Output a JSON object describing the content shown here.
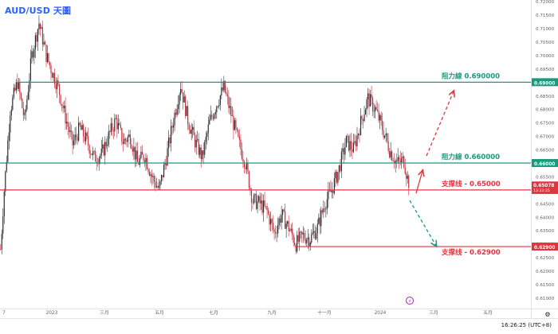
{
  "title": "AUD/USD 天圖",
  "clock": "16:26:25 (UTC+8)",
  "colors": {
    "title": "#2962ff",
    "resistance": "#1a9a7c",
    "support": "#e0353f",
    "up_candle": "#2c2f36",
    "down_candle": "#c2303a",
    "up_arrow": "#e0353f",
    "down_arrow": "#1a9a7c",
    "event": "#9c27b0"
  },
  "chart_data": {
    "type": "candlestick",
    "y_range": [
      0.606,
      0.7205
    ],
    "y_ticks": [
      "0.72000",
      "0.71500",
      "0.71000",
      "0.70500",
      "0.70000",
      "0.69500",
      "0.68500",
      "0.68000",
      "0.67500",
      "0.67000",
      "0.66500",
      "0.65500",
      "0.64500",
      "0.64000",
      "0.63500",
      "0.63000",
      "0.62500",
      "0.62000",
      "0.61500",
      "0.61000"
    ],
    "x_ticks": [
      "7",
      "2023",
      "三月",
      "五月",
      "七月",
      "九月",
      "十一月",
      "2024",
      "三月",
      "五月"
    ],
    "levels": [
      {
        "price": 0.69,
        "tag": "0.69000",
        "label": "阻力線 0.690000",
        "role": "resistance"
      },
      {
        "price": 0.66,
        "tag": "0.66000",
        "label": "阻力線 0.660000",
        "role": "resistance"
      },
      {
        "price": 0.65,
        "tag": "0.65000",
        "label": "支撑线 - 0.65000",
        "role": "support"
      },
      {
        "price": 0.629,
        "tag": "0.62900",
        "label": "支撑线 - 0.62900",
        "role": "support"
      }
    ],
    "last_price": {
      "value": 0.65078,
      "tag": "0.65078",
      "countdown": "13:33:35"
    },
    "anchors": [
      [
        0,
        0.628
      ],
      [
        3,
        0.65
      ],
      [
        8,
        0.68
      ],
      [
        14,
        0.69
      ],
      [
        20,
        0.676
      ],
      [
        26,
        0.7
      ],
      [
        32,
        0.712
      ],
      [
        38,
        0.7
      ],
      [
        42,
        0.695
      ],
      [
        48,
        0.688
      ],
      [
        54,
        0.677
      ],
      [
        60,
        0.667
      ],
      [
        66,
        0.673
      ],
      [
        72,
        0.668
      ],
      [
        78,
        0.662
      ],
      [
        84,
        0.663
      ],
      [
        90,
        0.67
      ],
      [
        96,
        0.676
      ],
      [
        102,
        0.668
      ],
      [
        108,
        0.67
      ],
      [
        114,
        0.66
      ],
      [
        120,
        0.663
      ],
      [
        126,
        0.655
      ],
      [
        132,
        0.65
      ],
      [
        138,
        0.662
      ],
      [
        144,
        0.676
      ],
      [
        150,
        0.689
      ],
      [
        156,
        0.676
      ],
      [
        162,
        0.668
      ],
      [
        168,
        0.662
      ],
      [
        174,
        0.675
      ],
      [
        180,
        0.682
      ],
      [
        186,
        0.688
      ],
      [
        192,
        0.678
      ],
      [
        198,
        0.668
      ],
      [
        204,
        0.66
      ],
      [
        210,
        0.646
      ],
      [
        216,
        0.645
      ],
      [
        222,
        0.642
      ],
      [
        228,
        0.634
      ],
      [
        234,
        0.641
      ],
      [
        240,
        0.636
      ],
      [
        246,
        0.63
      ],
      [
        252,
        0.633
      ],
      [
        258,
        0.632
      ],
      [
        264,
        0.636
      ],
      [
        270,
        0.645
      ],
      [
        276,
        0.65
      ],
      [
        282,
        0.658
      ],
      [
        288,
        0.668
      ],
      [
        294,
        0.665
      ],
      [
        300,
        0.675
      ],
      [
        306,
        0.684
      ],
      [
        312,
        0.68
      ],
      [
        318,
        0.673
      ],
      [
        324,
        0.665
      ],
      [
        330,
        0.66
      ],
      [
        336,
        0.661
      ],
      [
        340,
        0.652
      ]
    ]
  }
}
